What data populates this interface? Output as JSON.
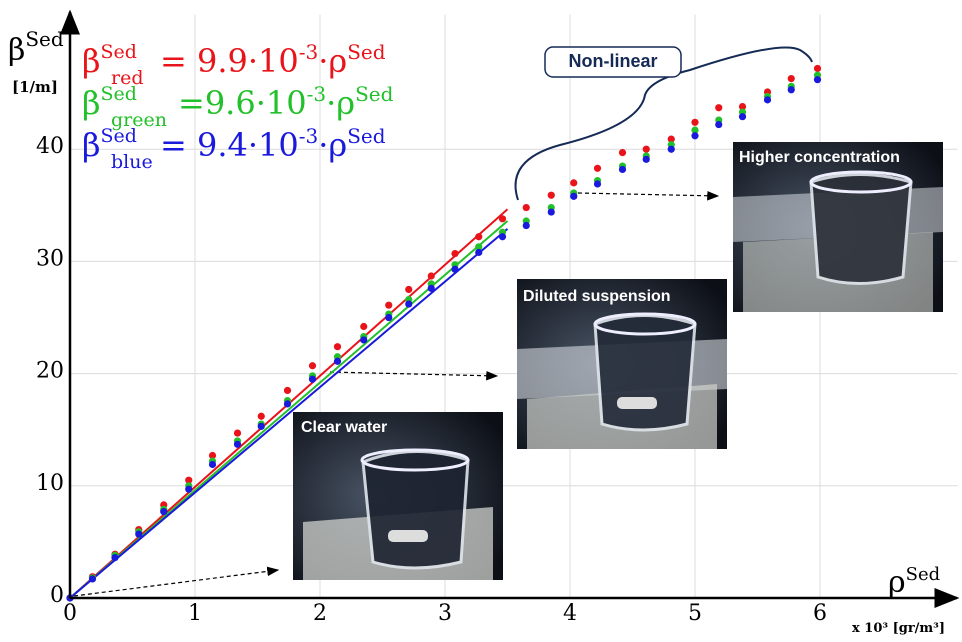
{
  "chart_data": {
    "type": "scatter",
    "x_label": {
      "symbol": "ρ",
      "sup": "Sed",
      "unit": "x 10³ [gr/m³]"
    },
    "y_label": {
      "symbol": "β",
      "sup": "Sed",
      "unit": "[1/m]"
    },
    "xlim": [
      0,
      7.1
    ],
    "ylim": [
      0,
      52
    ],
    "xticks": [
      0,
      1,
      2,
      3,
      4,
      5,
      6
    ],
    "yticks": [
      0,
      10,
      20,
      30,
      40
    ],
    "grid": true,
    "x": [
      0,
      0.18,
      0.36,
      0.55,
      0.75,
      0.95,
      1.14,
      1.34,
      1.53,
      1.74,
      1.94,
      2.14,
      2.35,
      2.55,
      2.71,
      2.89,
      3.08,
      3.27,
      3.46,
      3.65,
      3.85,
      4.03,
      4.22,
      4.42,
      4.61,
      4.81,
      5.0,
      5.19,
      5.38,
      5.58,
      5.77,
      5.98
    ],
    "series": [
      {
        "color": "#e8141a",
        "values": [
          0,
          1.9,
          3.9,
          6.1,
          8.3,
          10.5,
          12.7,
          14.7,
          16.2,
          18.5,
          20.7,
          22.4,
          24.2,
          26.1,
          27.5,
          28.7,
          30.7,
          32.2,
          33.8,
          34.8,
          35.9,
          37.0,
          38.3,
          39.7,
          40.0,
          40.9,
          42.4,
          43.7,
          43.8,
          45.1,
          46.3,
          47.2
        ]
      },
      {
        "color": "#22c02a",
        "values": [
          0,
          1.8,
          3.8,
          5.9,
          7.9,
          10.0,
          12.2,
          14.0,
          15.5,
          17.6,
          19.8,
          21.5,
          23.3,
          25.3,
          26.6,
          28.0,
          29.7,
          31.3,
          32.6,
          33.6,
          34.8,
          36.1,
          37.2,
          38.5,
          39.4,
          40.4,
          41.7,
          42.6,
          43.3,
          44.7,
          45.6,
          46.6
        ]
      },
      {
        "color": "#1a1adc",
        "values": [
          0,
          1.7,
          3.6,
          5.7,
          7.7,
          9.7,
          11.9,
          13.7,
          15.3,
          17.3,
          19.5,
          21.1,
          23.0,
          25.0,
          26.2,
          27.6,
          29.3,
          30.8,
          32.2,
          33.2,
          34.4,
          35.8,
          36.9,
          38.2,
          39.1,
          40.0,
          41.2,
          42.2,
          42.9,
          44.4,
          45.3,
          46.2
        ]
      }
    ],
    "fit_lines": [
      {
        "color": "#e8141a",
        "x": [
          0,
          3.5
        ],
        "values": [
          0,
          34.65
        ]
      },
      {
        "color": "#22c02a",
        "x": [
          0,
          3.5
        ],
        "values": [
          0,
          33.6
        ]
      },
      {
        "color": "#1a1adc",
        "x": [
          0,
          3.5
        ],
        "values": [
          0,
          32.9
        ]
      }
    ],
    "equations": [
      {
        "color": "#e8141a",
        "symbol": "β",
        "sup": "Sed",
        "sub": "red",
        "rhs": "= 9.9·10",
        "exp": "-3",
        "tail": "·ρ",
        "tail_sup": "Sed"
      },
      {
        "color": "#22c02a",
        "symbol": "β",
        "sup": "Sed",
        "sub": "green",
        "rhs": "=9.6·10",
        "exp": "-3",
        "tail": "·ρ",
        "tail_sup": "Sed"
      },
      {
        "color": "#1a1adc",
        "symbol": "β",
        "sup": "Sed",
        "sub": "blue",
        "rhs": "= 9.4·10",
        "exp": "-3",
        "tail": "·ρ",
        "tail_sup": "Sed"
      }
    ],
    "annotations": {
      "nonlinear": "Non-linear",
      "photo_1": "Clear water",
      "photo_2": "Diluted suspension",
      "photo_3": "Higher concentration"
    }
  }
}
